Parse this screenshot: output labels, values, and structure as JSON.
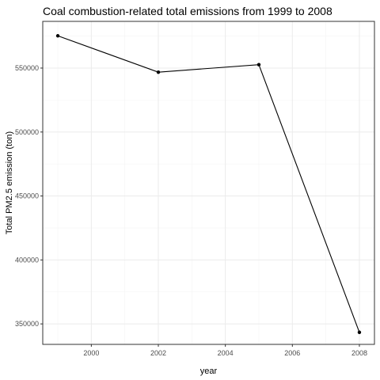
{
  "chart_data": {
    "type": "line",
    "title": "Coal combustion-related total emissions from 1999 to 2008",
    "xlabel": "year",
    "ylabel": "Total PM2.5 emission (ton)",
    "xlim": [
      1998.55,
      2008.45
    ],
    "ylim": [
      334000,
      586500
    ],
    "x_ticks": [
      2000,
      2002,
      2004,
      2006,
      2008
    ],
    "y_ticks": [
      350000,
      400000,
      450000,
      500000,
      550000
    ],
    "x_minor": [
      1999,
      2001,
      2003,
      2005,
      2007
    ],
    "y_minor": [
      375000,
      425000,
      475000,
      525000,
      575000
    ],
    "grid": true,
    "series": [
      {
        "x": [
          1999,
          2002,
          2005,
          2008
        ],
        "values": [
          575207,
          546789,
          552675,
          343432
        ],
        "color": "#000000"
      }
    ]
  }
}
